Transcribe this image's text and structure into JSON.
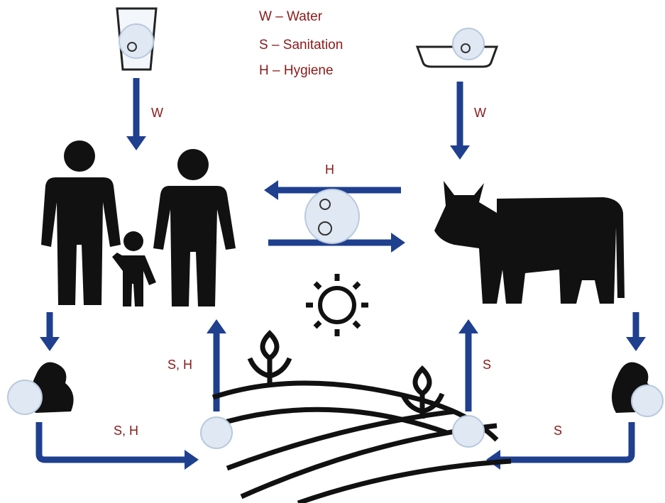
{
  "legend": [
    "W – Water",
    "S – Sanitation",
    "H – Hygiene"
  ],
  "arrows": [
    {
      "label": "W"
    },
    {
      "label": "W"
    },
    {
      "label": "H"
    },
    {
      "label": "S, H"
    },
    {
      "label": "S, H"
    },
    {
      "label": "S"
    },
    {
      "label": "S"
    }
  ]
}
